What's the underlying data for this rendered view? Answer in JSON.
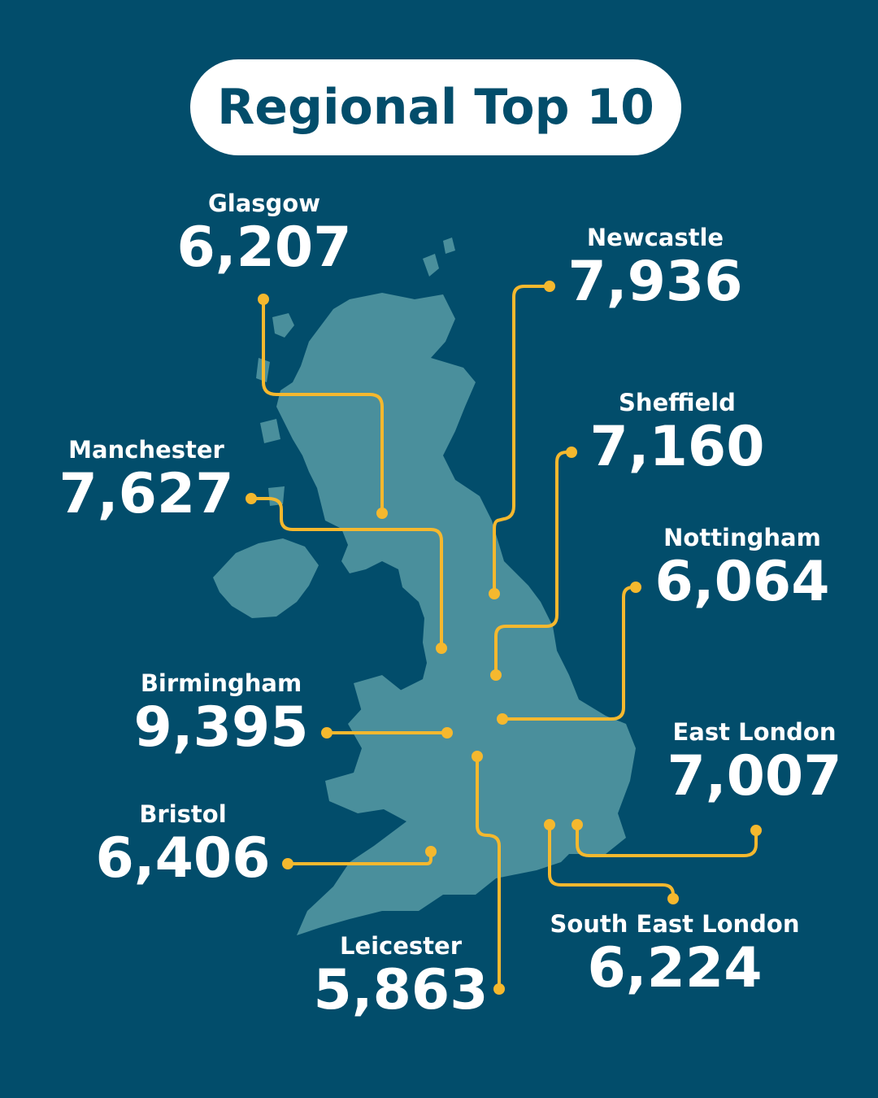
{
  "title": "Regional Top 10",
  "colors": {
    "background": "#024d6b",
    "land": "#4a8f9c",
    "connector": "#f5b82e",
    "text": "#ffffff"
  },
  "regions": [
    {
      "id": "glasgow",
      "name": "Glasgow",
      "value": "6,207"
    },
    {
      "id": "newcastle",
      "name": "Newcastle",
      "value": "7,936"
    },
    {
      "id": "sheffield",
      "name": "Sheffield",
      "value": "7,160"
    },
    {
      "id": "manchester",
      "name": "Manchester",
      "value": "7,627"
    },
    {
      "id": "nottingham",
      "name": "Nottingham",
      "value": "6,064"
    },
    {
      "id": "birmingham",
      "name": "Birmingham",
      "value": "9,395"
    },
    {
      "id": "east-london",
      "name": "East London",
      "value": "7,007"
    },
    {
      "id": "bristol",
      "name": "Bristol",
      "value": "6,406"
    },
    {
      "id": "leicester",
      "name": "Leicester",
      "value": "5,863"
    },
    {
      "id": "south-east-london",
      "name": "South East London",
      "value": "6,224"
    }
  ]
}
